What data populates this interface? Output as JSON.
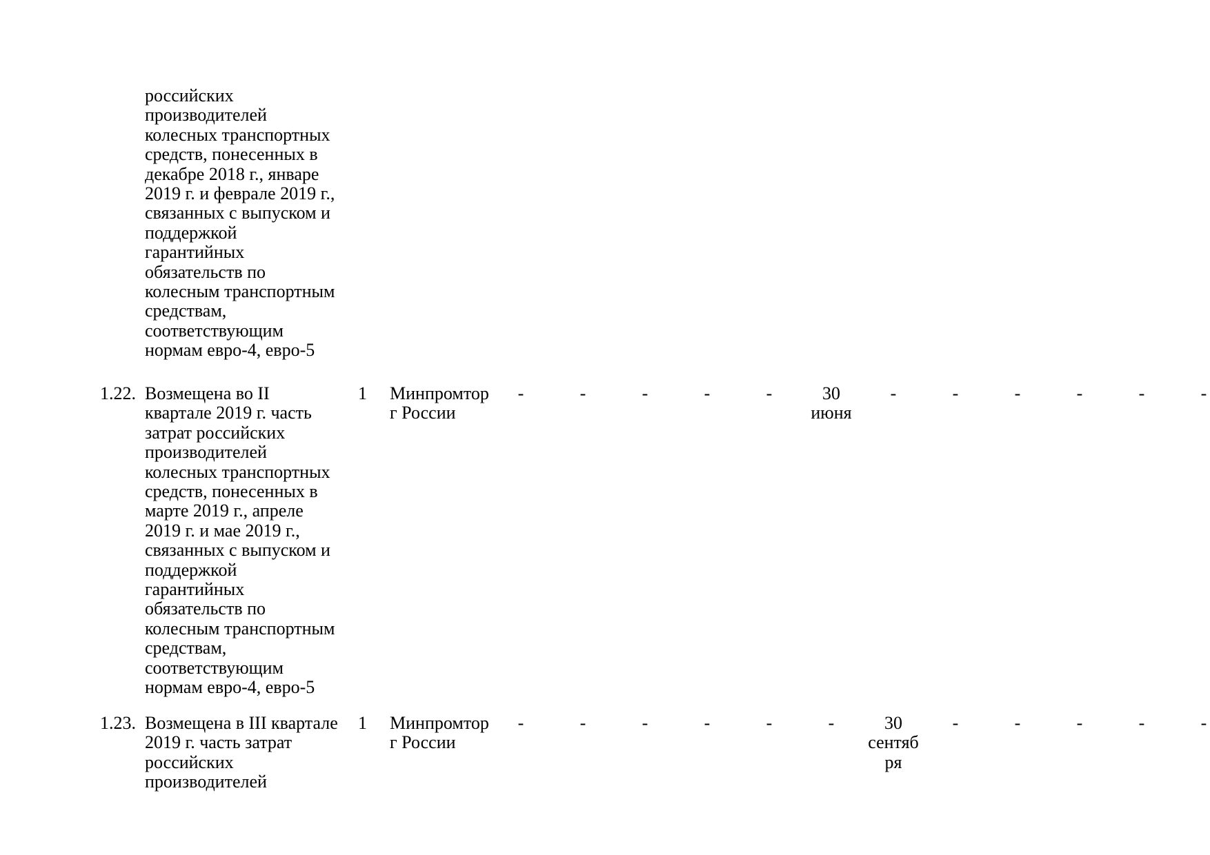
{
  "document": {
    "background_color": "#ffffff",
    "text_color": "#000000",
    "type": "plan-implementation-table-page"
  },
  "table": {
    "rows": [
      {
        "num": "",
        "description": "российских\nпроизводителей\nколесных транспортных\nсредств, понесенных в\nдекабре 2018 г., январе\n2019 г. и феврале 2019 г.,\nсвязанных с выпуском и\nподдержкой\nгарантийных\nобязательств по\nколесным транспортным\nсредствам,\nсоответствующим\nнормам евро-4, евро-5",
        "qty": "",
        "ministry": "",
        "cells": [
          "",
          "",
          "",
          "",
          "",
          "",
          "",
          "",
          "",
          "",
          "",
          ""
        ]
      },
      {
        "num": "1.22.",
        "description": "Возмещена во II\nквартале 2019 г. часть\nзатрат российских\nпроизводителей\nколесных транспортных\nсредств, понесенных в\nмарте 2019 г., апреле\n2019 г. и мае 2019 г.,\nсвязанных с выпуском и\nподдержкой\nгарантийных\nобязательств по\nколесным транспортным\nсредствам,\nсоответствующим\nнормам евро-4, евро-5",
        "qty": "1",
        "ministry": "Минпромтор\nг России",
        "cells": [
          "-",
          "-",
          "-",
          "-",
          "-",
          "30\nиюня",
          "-",
          "-",
          "-",
          "-",
          "-",
          "-"
        ]
      },
      {
        "num": "1.23.",
        "description": "Возмещена в III квартале\n2019 г. часть затрат\nроссийских\nпроизводителей",
        "qty": "1",
        "ministry": "Минпромтор\nг России",
        "cells": [
          "-",
          "-",
          "-",
          "-",
          "-",
          "-",
          "30\nсентяб\nря",
          "-",
          "-",
          "-",
          "-",
          "-"
        ]
      }
    ]
  }
}
